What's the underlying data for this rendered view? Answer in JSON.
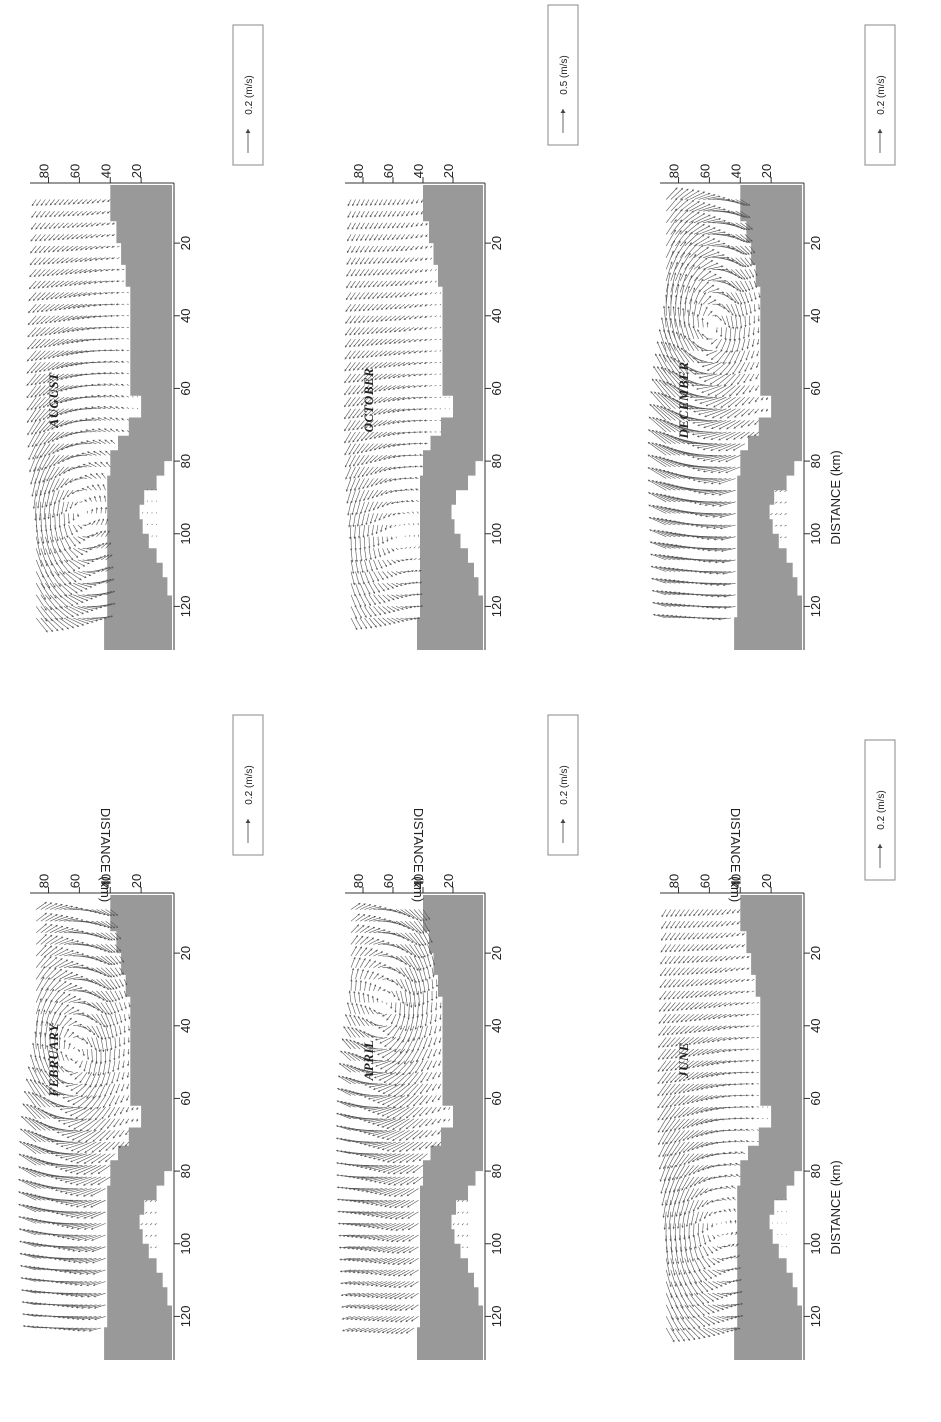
{
  "figure": {
    "orientation": "rotated 90 degrees clockwise",
    "colors": {
      "land": "#999999",
      "vectors": "#555555",
      "background": "#ffffff"
    }
  },
  "chart_data": [
    {
      "type": "vector_field",
      "title": "FEBRUARY",
      "xlabel": "",
      "ylabel": "DISTANCE (km)",
      "xlim": [
        4,
        132
      ],
      "ylim": [
        0,
        92
      ],
      "xticks": [
        20,
        40,
        60,
        80,
        100,
        120
      ],
      "yticks": [
        20,
        40,
        60,
        80
      ],
      "scale_label": "0.2 (m/s)",
      "scale_value": 0.2,
      "pattern": {
        "circulation": "cyclonic",
        "eddy_center": [
          50,
          62
        ],
        "eddy_strength": 0.16,
        "mean_flow": [
          0.01,
          0.03
        ]
      }
    },
    {
      "type": "vector_field",
      "title": "APRIL",
      "xlabel": "",
      "ylabel": "DISTANCE (km)",
      "xlim": [
        4,
        132
      ],
      "ylim": [
        0,
        92
      ],
      "xticks": [
        20,
        40,
        60,
        80,
        100,
        120
      ],
      "yticks": [
        20,
        40,
        60,
        80
      ],
      "scale_label": "0.2 (m/s)",
      "scale_value": 0.2,
      "pattern": {
        "circulation": "cyclonic",
        "eddy_center": [
          35,
          62
        ],
        "eddy_strength": 0.14,
        "mean_flow": [
          0.04,
          0.02
        ]
      }
    },
    {
      "type": "vector_field",
      "title": "JUNE",
      "xlabel": "DISTANCE (km)",
      "ylabel": "DISTANCE (km)",
      "xlim": [
        4,
        132
      ],
      "ylim": [
        0,
        92
      ],
      "xticks": [
        20,
        40,
        60,
        80,
        100,
        120
      ],
      "yticks": [
        20,
        40,
        60,
        80
      ],
      "scale_label": "0.2 (m/s)",
      "scale_value": 0.2,
      "pattern": {
        "circulation": "anticyclonic",
        "eddy_center": [
          95,
          60
        ],
        "eddy_strength": 0.1,
        "mean_flow": [
          0.05,
          0.0
        ]
      }
    },
    {
      "type": "vector_field",
      "title": "AUGUST",
      "xlabel": "",
      "ylabel": "",
      "xlim": [
        4,
        132
      ],
      "ylim": [
        0,
        92
      ],
      "xticks": [
        20,
        40,
        60,
        80,
        100,
        120
      ],
      "yticks": [
        20,
        40,
        60,
        80
      ],
      "scale_label": "0.2 (m/s)",
      "scale_value": 0.2,
      "pattern": {
        "circulation": "anticyclonic",
        "eddy_center": [
          95,
          62
        ],
        "eddy_strength": 0.12,
        "mean_flow": [
          0.04,
          -0.01
        ]
      }
    },
    {
      "type": "vector_field",
      "title": "OCTOBER",
      "xlabel": "",
      "ylabel": "",
      "xlim": [
        4,
        132
      ],
      "ylim": [
        0,
        92
      ],
      "xticks": [
        20,
        40,
        60,
        80,
        100,
        120
      ],
      "yticks": [
        20,
        40,
        60,
        80
      ],
      "scale_label": "0.5 (m/s)",
      "scale_value": 0.5,
      "pattern": {
        "circulation": "anticyclonic",
        "eddy_center": [
          100,
          65
        ],
        "eddy_strength": 0.18,
        "mean_flow": [
          0.12,
          0.0
        ]
      }
    },
    {
      "type": "vector_field",
      "title": "DECEMBER",
      "xlabel": "DISTANCE (km)",
      "ylabel": "",
      "xlim": [
        4,
        132
      ],
      "ylim": [
        0,
        92
      ],
      "xticks": [
        20,
        40,
        60,
        80,
        100,
        120
      ],
      "yticks": [
        20,
        40,
        60,
        80
      ],
      "scale_label": "0.2 (m/s)",
      "scale_value": 0.2,
      "pattern": {
        "circulation": "cyclonic",
        "eddy_center": [
          45,
          58
        ],
        "eddy_strength": 0.18,
        "mean_flow": [
          0.0,
          0.03
        ]
      }
    }
  ],
  "coastline": {
    "units": "km",
    "polygon": [
      [
        4,
        0
      ],
      [
        4,
        40
      ],
      [
        14,
        40
      ],
      [
        14,
        36
      ],
      [
        20,
        36
      ],
      [
        20,
        33
      ],
      [
        26,
        33
      ],
      [
        26,
        30
      ],
      [
        32,
        30
      ],
      [
        32,
        27
      ],
      [
        62,
        27
      ],
      [
        62,
        20
      ],
      [
        68,
        20
      ],
      [
        68,
        28
      ],
      [
        73,
        28
      ],
      [
        73,
        35
      ],
      [
        77,
        35
      ],
      [
        77,
        40
      ],
      [
        84,
        40
      ],
      [
        84,
        42
      ],
      [
        123,
        42
      ],
      [
        123,
        44
      ],
      [
        132,
        44
      ],
      [
        132,
        0
      ],
      [
        117,
        0
      ],
      [
        117,
        3
      ],
      [
        112,
        3
      ],
      [
        112,
        6
      ],
      [
        108,
        6
      ],
      [
        108,
        10
      ],
      [
        104,
        10
      ],
      [
        104,
        15
      ],
      [
        100,
        15
      ],
      [
        100,
        19
      ],
      [
        96,
        19
      ],
      [
        96,
        21
      ],
      [
        92,
        21
      ],
      [
        92,
        18
      ],
      [
        88,
        18
      ],
      [
        88,
        10
      ],
      [
        84,
        10
      ],
      [
        84,
        5
      ],
      [
        80,
        5
      ],
      [
        80,
        0
      ]
    ]
  }
}
